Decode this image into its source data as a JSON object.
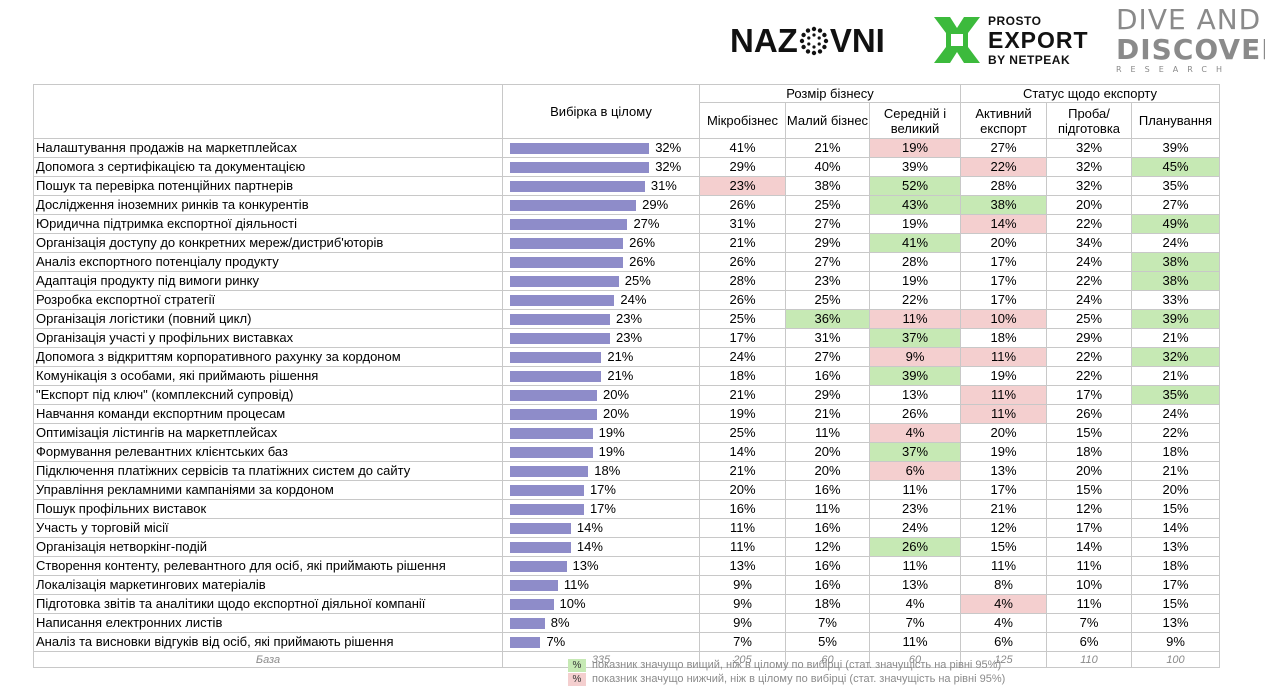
{
  "logos": {
    "nazovni": "NAZOVNI",
    "prosto_line1": "PROSTO",
    "prosto_line2": "EXPORT",
    "prosto_line3": "BY NETPEAK",
    "dive_line1": "DIVE AND",
    "dive_line2": "DISCOVERY",
    "dive_line3": "RESEARCH",
    "prosto_color": "#3cba3c",
    "nazovni_color": "#111111",
    "dive_color": "#8a8a8a"
  },
  "chart_data": {
    "type": "table",
    "total_header": "Вибірка в цілому",
    "groups": [
      {
        "label": "Розмір бізнесу",
        "columns": [
          "Мікробізнес",
          "Малий бізнес",
          "Середній і великий"
        ]
      },
      {
        "label": "Статус щодо експорту",
        "columns": [
          "Активний експорт",
          "Проба/ підготовка",
          "Планування"
        ]
      }
    ],
    "bar_max": 100,
    "bar_color": "#8e8cc9",
    "rows": [
      {
        "label": "Налаштування продажів на маркетплейсах",
        "total": 32,
        "values": [
          41,
          21,
          19,
          27,
          32,
          39
        ],
        "sig": [
          "",
          "",
          "lo",
          "",
          "",
          ""
        ]
      },
      {
        "label": "Допомога з сертифікацією та документацією",
        "total": 32,
        "values": [
          29,
          40,
          39,
          22,
          32,
          45
        ],
        "sig": [
          "",
          "",
          "",
          "lo",
          "",
          "hi"
        ]
      },
      {
        "label": "Пошук та перевірка потенційних партнерів",
        "total": 31,
        "values": [
          23,
          38,
          52,
          28,
          32,
          35
        ],
        "sig": [
          "lo",
          "",
          "hi",
          "",
          "",
          ""
        ]
      },
      {
        "label": "Дослідження іноземних ринків та конкурентів",
        "total": 29,
        "values": [
          26,
          25,
          43,
          38,
          20,
          27
        ],
        "sig": [
          "",
          "",
          "hi",
          "hi",
          "",
          ""
        ]
      },
      {
        "label": "Юридична підтримка експортної діяльності",
        "total": 27,
        "values": [
          31,
          27,
          19,
          14,
          22,
          49
        ],
        "sig": [
          "",
          "",
          "",
          "lo",
          "",
          "hi"
        ]
      },
      {
        "label": "Організація доступу до конкретних мереж/дистриб'юторів",
        "total": 26,
        "values": [
          21,
          29,
          41,
          20,
          34,
          24
        ],
        "sig": [
          "",
          "",
          "hi",
          "",
          "",
          ""
        ]
      },
      {
        "label": "Аналіз експортного потенціалу продукту",
        "total": 26,
        "values": [
          26,
          27,
          28,
          17,
          24,
          38
        ],
        "sig": [
          "",
          "",
          "",
          "",
          "",
          "hi"
        ]
      },
      {
        "label": "Адаптація продукту під вимоги ринку",
        "total": 25,
        "values": [
          28,
          23,
          19,
          17,
          22,
          38
        ],
        "sig": [
          "",
          "",
          "",
          "",
          "",
          "hi"
        ]
      },
      {
        "label": "Розробка експортної стратегії",
        "total": 24,
        "values": [
          26,
          25,
          22,
          17,
          24,
          33
        ],
        "sig": [
          "",
          "",
          "",
          "",
          "",
          ""
        ]
      },
      {
        "label": "Організація логістики (повний цикл)",
        "total": 23,
        "values": [
          25,
          36,
          11,
          10,
          25,
          39
        ],
        "sig": [
          "",
          "hi",
          "lo",
          "lo",
          "",
          "hi"
        ]
      },
      {
        "label": "Організація участі у профільних виставках",
        "total": 23,
        "values": [
          17,
          31,
          37,
          18,
          29,
          21
        ],
        "sig": [
          "",
          "",
          "hi",
          "",
          "",
          ""
        ]
      },
      {
        "label": "Допомога з відкриттям корпоративного рахунку за кордоном",
        "total": 21,
        "values": [
          24,
          27,
          9,
          11,
          22,
          32
        ],
        "sig": [
          "",
          "",
          "lo",
          "lo",
          "",
          "hi"
        ]
      },
      {
        "label": "Комунікація з особами, які приймають рішення",
        "total": 21,
        "values": [
          18,
          16,
          39,
          19,
          22,
          21
        ],
        "sig": [
          "",
          "",
          "hi",
          "",
          "",
          ""
        ]
      },
      {
        "label": "\"Експорт під ключ\" (комплексний супровід)",
        "total": 20,
        "values": [
          21,
          29,
          13,
          11,
          17,
          35
        ],
        "sig": [
          "",
          "",
          "",
          "lo",
          "",
          "hi"
        ]
      },
      {
        "label": "Навчання команди експортним процесам",
        "total": 20,
        "values": [
          19,
          21,
          26,
          11,
          26,
          24
        ],
        "sig": [
          "",
          "",
          "",
          "lo",
          "",
          ""
        ]
      },
      {
        "label": "Оптимізація лістингів на маркетплейсах",
        "total": 19,
        "values": [
          25,
          11,
          4,
          20,
          15,
          22
        ],
        "sig": [
          "",
          "",
          "lo",
          "",
          "",
          ""
        ]
      },
      {
        "label": "Формування релевантних клієнтських баз",
        "total": 19,
        "values": [
          14,
          20,
          37,
          19,
          18,
          18
        ],
        "sig": [
          "",
          "",
          "hi",
          "",
          "",
          ""
        ]
      },
      {
        "label": "Підключення платіжних сервісів та платіжних систем до сайту",
        "total": 18,
        "values": [
          21,
          20,
          6,
          13,
          20,
          21
        ],
        "sig": [
          "",
          "",
          "lo",
          "",
          "",
          ""
        ]
      },
      {
        "label": "Управління рекламними кампаніями за кордоном",
        "total": 17,
        "values": [
          20,
          16,
          11,
          17,
          15,
          20
        ],
        "sig": [
          "",
          "",
          "",
          "",
          "",
          ""
        ]
      },
      {
        "label": "Пошук профільних виставок",
        "total": 17,
        "values": [
          16,
          11,
          23,
          21,
          12,
          15
        ],
        "sig": [
          "",
          "",
          "",
          "",
          "",
          ""
        ]
      },
      {
        "label": "Участь у торговій місії",
        "total": 14,
        "values": [
          11,
          16,
          24,
          12,
          17,
          14
        ],
        "sig": [
          "",
          "",
          "",
          "",
          "",
          ""
        ]
      },
      {
        "label": "Організація нетворкінг-подій",
        "total": 14,
        "values": [
          11,
          12,
          26,
          15,
          14,
          13
        ],
        "sig": [
          "",
          "",
          "hi",
          "",
          "",
          ""
        ]
      },
      {
        "label": "Створення контенту, релевантного для осіб, які приймають рішення",
        "total": 13,
        "values": [
          13,
          16,
          11,
          11,
          11,
          18
        ],
        "sig": [
          "",
          "",
          "",
          "",
          "",
          ""
        ]
      },
      {
        "label": "Локалізація маркетингових матеріалів",
        "total": 11,
        "values": [
          9,
          16,
          13,
          8,
          10,
          17
        ],
        "sig": [
          "",
          "",
          "",
          "",
          "",
          ""
        ]
      },
      {
        "label": "Підготовка звітів та аналітики щодо експортної діяльної компанії",
        "total": 10,
        "values": [
          9,
          18,
          4,
          4,
          11,
          15
        ],
        "sig": [
          "",
          "",
          "",
          "lo",
          "",
          ""
        ]
      },
      {
        "label": "Написання електронних листів",
        "total": 8,
        "values": [
          9,
          7,
          7,
          4,
          7,
          13
        ],
        "sig": [
          "",
          "",
          "",
          "",
          "",
          ""
        ]
      },
      {
        "label": "Аналіз та висновки відгуків від осіб, які приймають рішення",
        "total": 7,
        "values": [
          7,
          5,
          11,
          6,
          6,
          9
        ],
        "sig": [
          "",
          "",
          "",
          "",
          "",
          ""
        ]
      }
    ],
    "base": {
      "label": "База",
      "total": 335,
      "values": [
        205,
        60,
        60,
        125,
        110,
        100
      ]
    },
    "sig_colors": {
      "hi": "#c6e9b4",
      "lo": "#f4cfcf"
    }
  },
  "legend": {
    "symbol": "%",
    "high_text": "показник значущо вищий, ніж в цілому по вибірці (стат. значущість на рівні 95%)",
    "low_text": "показник значущо нижчий, ніж в цілому по вибірці (стат. значущість на рівні 95%)"
  }
}
